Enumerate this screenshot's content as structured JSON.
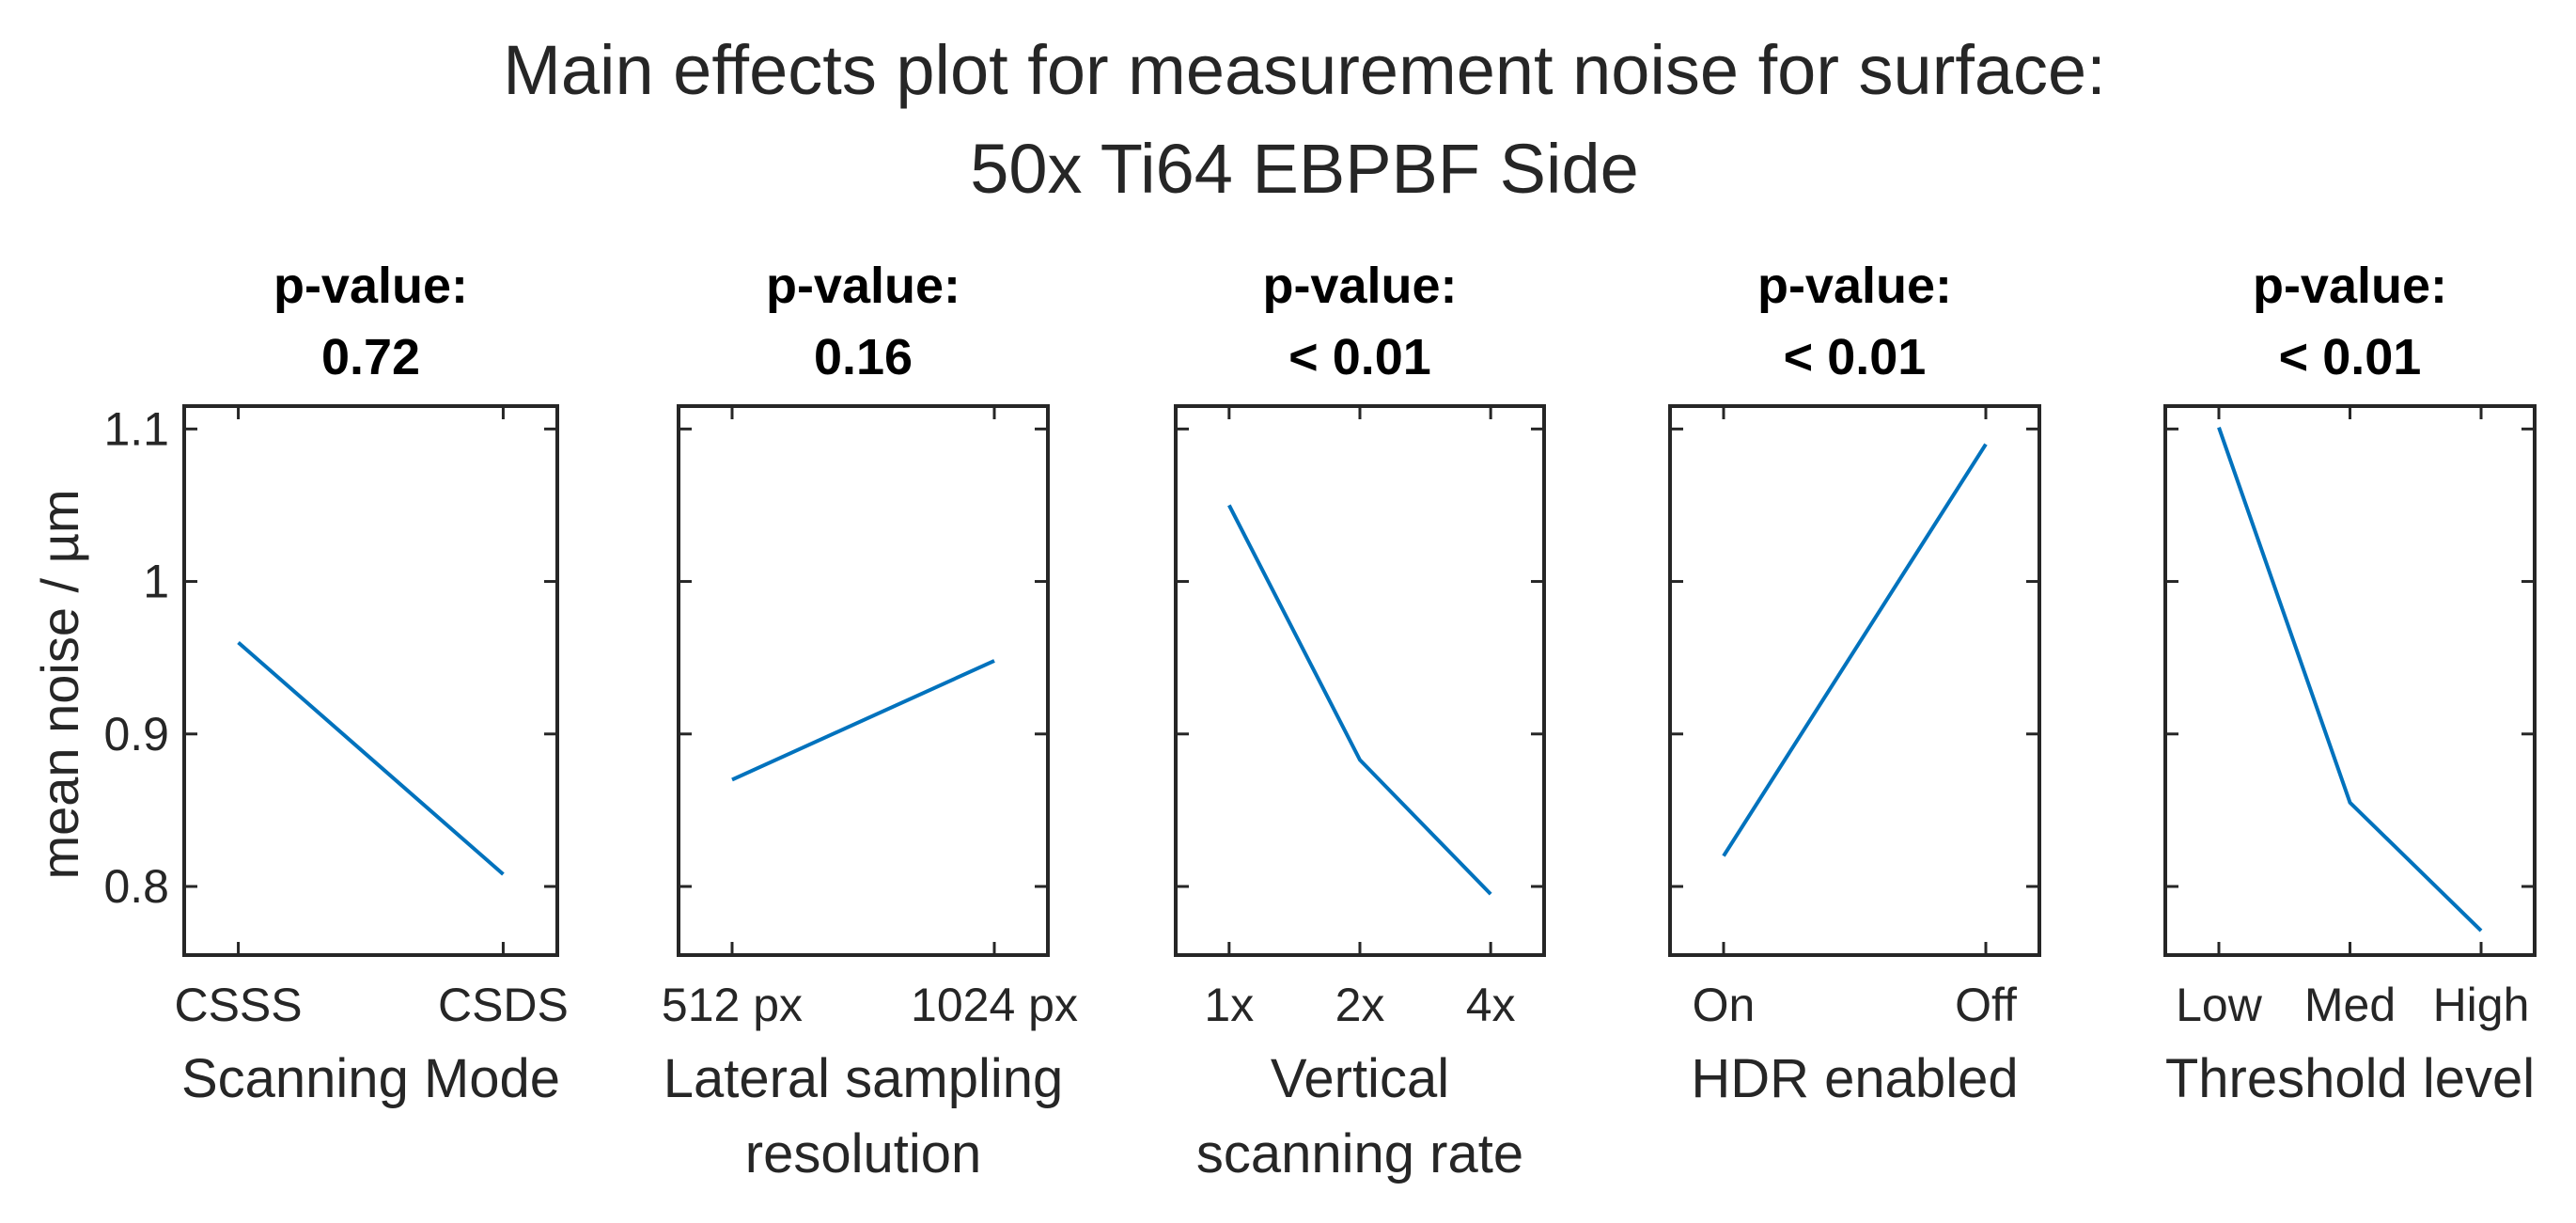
{
  "chart_data": {
    "type": "line",
    "title": [
      "Main effects plot for measurement noise for surface:",
      "50x Ti64 EBPBF Side"
    ],
    "ylabel": "mean noise / µm",
    "ylim": [
      0.755,
      1.115
    ],
    "yticks": [
      0.8,
      0.9,
      1,
      1.1
    ],
    "ytick_labels": [
      "0.8",
      "0.9",
      "1",
      "1.1"
    ],
    "line_color": "#0072BD",
    "panels": [
      {
        "pvalue_title": "p-value:",
        "pvalue": "0.72",
        "xlabel": [
          "Scanning Mode"
        ],
        "categories": [
          "CSSS",
          "CSDS"
        ],
        "values": [
          0.96,
          0.808
        ]
      },
      {
        "pvalue_title": "p-value:",
        "pvalue": "0.16",
        "xlabel": [
          "Lateral sampling",
          "resolution"
        ],
        "categories": [
          "512 px",
          "1024 px"
        ],
        "values": [
          0.87,
          0.948
        ]
      },
      {
        "pvalue_title": "p-value:",
        "pvalue": "< 0.01",
        "xlabel": [
          "Vertical",
          "scanning rate"
        ],
        "categories": [
          "1x",
          "2x",
          "4x"
        ],
        "values": [
          1.05,
          0.883,
          0.795
        ]
      },
      {
        "pvalue_title": "p-value:",
        "pvalue": "< 0.01",
        "xlabel": [
          "HDR enabled"
        ],
        "categories": [
          "On",
          "Off"
        ],
        "values": [
          0.82,
          1.09
        ]
      },
      {
        "pvalue_title": "p-value:",
        "pvalue": "< 0.01",
        "xlabel": [
          "Threshold level"
        ],
        "categories": [
          "Low",
          "Med",
          "High"
        ],
        "values": [
          1.101,
          0.855,
          0.771
        ]
      }
    ]
  }
}
